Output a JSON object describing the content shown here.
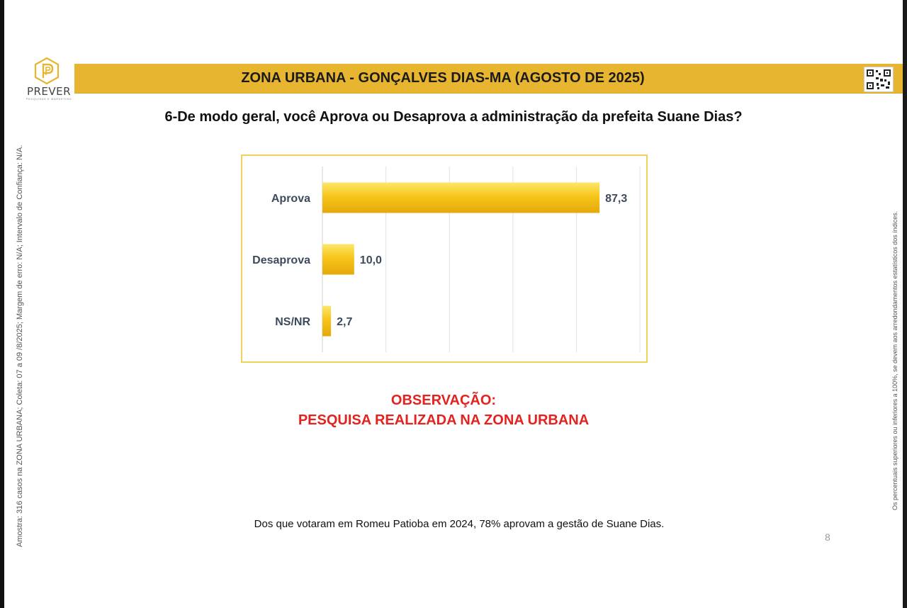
{
  "header": {
    "title": "ZONA URBANA - GONÇALVES DIAS-MA (AGOSTO DE 2025)",
    "brand": "PREVER",
    "brand_sub": "PESQUISAS E MARKETING",
    "accent_color": "#e7b52f"
  },
  "question": "6-De modo geral, você Aprova ou Desaprova a administração da prefeita Suane Dias?",
  "sidebar_left": "Amostra: 316 casos na ZONA URBANA; Coleta: 07 a 09 /8/2025; Margem de erro: N/A; Intervalo de Confiança: N/A.",
  "sidebar_right": "Os percentuais superiores ou inferiores a 100%, se devem aos arredondamentos estatísticos dos índices.",
  "observation": {
    "line1": "OBSERVAÇÃO:",
    "line2": "PESQUISA REALIZADA NA ZONA URBANA",
    "color": "#e3231f"
  },
  "footnote": "Dos que votaram em Romeu Patioba em 2024,  78% aprovam a gestão de Suane Dias.",
  "page_number": "8",
  "icons": {
    "logo": "prever-logo-icon",
    "qr": "qr-code-icon"
  },
  "chart_data": {
    "type": "bar",
    "orientation": "horizontal",
    "categories": [
      "Aprova",
      "Desaprova",
      "NS/NR"
    ],
    "values": [
      87.3,
      10.0,
      2.7
    ],
    "value_labels": [
      "87,3",
      "10,0",
      "2,7"
    ],
    "xlim": [
      0,
      100
    ],
    "grid": true,
    "bar_color": "#f5c518"
  }
}
